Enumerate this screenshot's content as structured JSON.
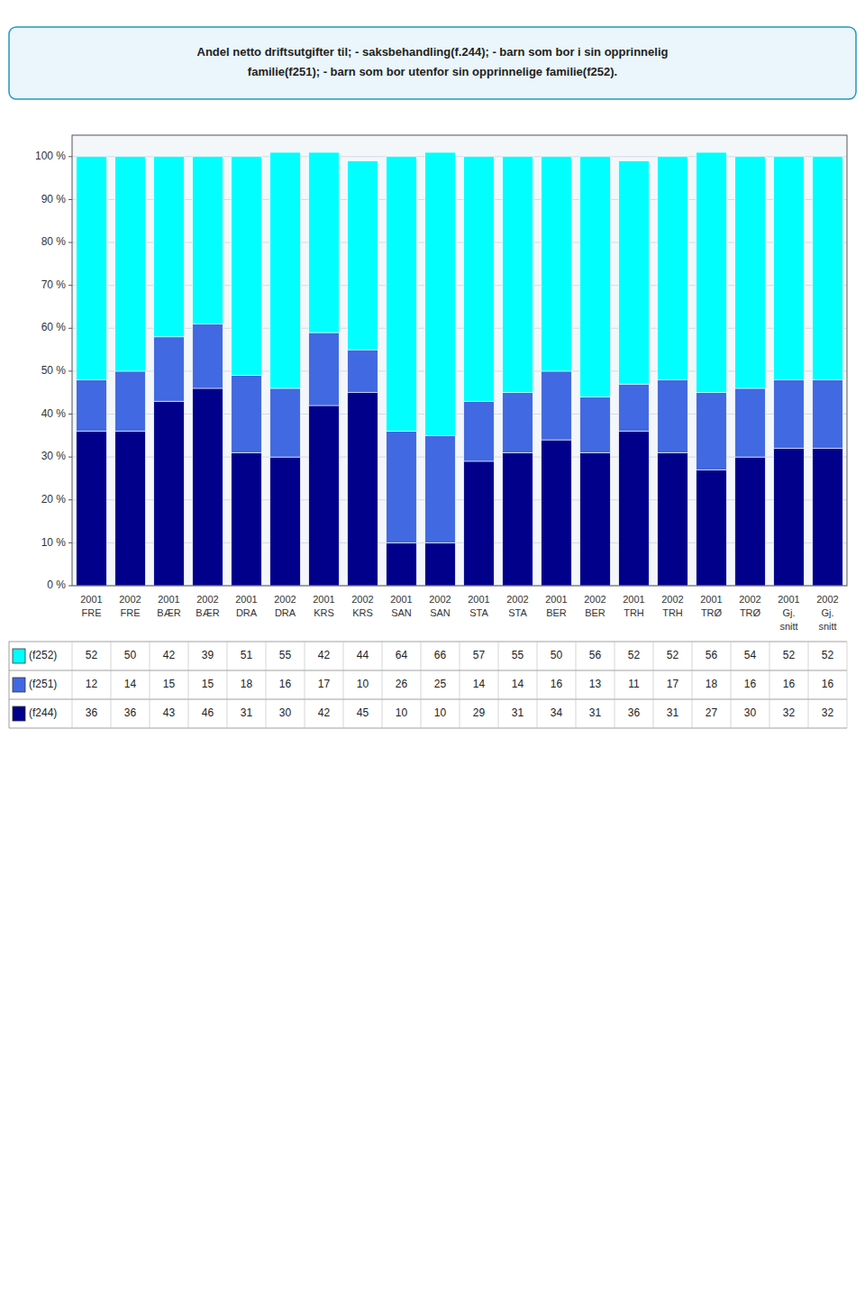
{
  "chart_data": {
    "type": "bar",
    "stacked": true,
    "grid": true,
    "title": [
      "Andel netto driftsutgifter til; - saksbehandling(f.244); - barn som bor i sin opprinnelig",
      "familie(f251); - barn som bor utenfor sin opprinnelige familie(f252)."
    ],
    "categories": [
      [
        "2001",
        "FRE"
      ],
      [
        "2002",
        "FRE"
      ],
      [
        "2001",
        "BÆR"
      ],
      [
        "2002",
        "BÆR"
      ],
      [
        "2001",
        "DRA"
      ],
      [
        "2002",
        "DRA"
      ],
      [
        "2001",
        "KRS"
      ],
      [
        "2002",
        "KRS"
      ],
      [
        "2001",
        "SAN"
      ],
      [
        "2002",
        "SAN"
      ],
      [
        "2001",
        "STA"
      ],
      [
        "2002",
        "STA"
      ],
      [
        "2001",
        "BER"
      ],
      [
        "2002",
        "BER"
      ],
      [
        "2001",
        "TRH"
      ],
      [
        "2002",
        "TRH"
      ],
      [
        "2001",
        "TRØ"
      ],
      [
        "2002",
        "TRØ"
      ],
      [
        "2001",
        "Gj.",
        "snitt"
      ],
      [
        "2002",
        "Gj.",
        "snitt"
      ]
    ],
    "series": [
      {
        "name": "(f244)",
        "color": "#00008B",
        "values": [
          36,
          36,
          43,
          46,
          31,
          30,
          42,
          45,
          10,
          10,
          29,
          31,
          34,
          31,
          36,
          31,
          27,
          30,
          32,
          32
        ]
      },
      {
        "name": "(f251)",
        "color": "#4169E1",
        "values": [
          12,
          14,
          15,
          15,
          18,
          16,
          17,
          10,
          26,
          25,
          14,
          14,
          16,
          13,
          11,
          17,
          18,
          16,
          16,
          16
        ]
      },
      {
        "name": "(f252)",
        "color": "#00FFFF",
        "values": [
          52,
          50,
          42,
          39,
          51,
          55,
          42,
          44,
          64,
          66,
          57,
          55,
          50,
          56,
          52,
          52,
          56,
          54,
          52,
          52
        ]
      }
    ],
    "ylim": [
      0,
      105
    ],
    "yticks": [
      {
        "value": 0,
        "label": "0 %"
      },
      {
        "value": 10,
        "label": "10 %"
      },
      {
        "value": 20,
        "label": "20 %"
      },
      {
        "value": 30,
        "label": "30 %"
      },
      {
        "value": 40,
        "label": "40 %"
      },
      {
        "value": 50,
        "label": "50 %"
      },
      {
        "value": 60,
        "label": "60 %"
      },
      {
        "value": 70,
        "label": "70 %"
      },
      {
        "value": 80,
        "label": "80 %"
      },
      {
        "value": 90,
        "label": "90 %"
      },
      {
        "value": 100,
        "label": "100 %"
      }
    ]
  }
}
